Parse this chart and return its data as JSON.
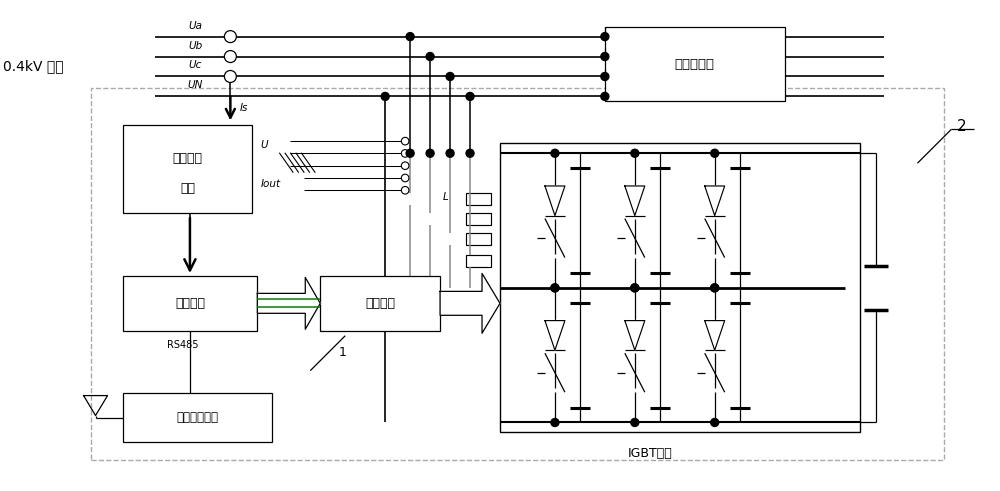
{
  "bg_color": "#ffffff",
  "lc": "#000000",
  "gray": "#888888",
  "green": "#008000",
  "voltage_label": "0.4kV 电源",
  "ua_label": "Ua",
  "ub_label": "Ub",
  "uc_label": "Uc",
  "un_label": "UN",
  "is_label": "Is",
  "u_label": "U",
  "iout_label": "Iout",
  "data_acq_line1": "数据采集",
  "data_acq_line2": "单元",
  "main_ctrl_label": "主控制器",
  "drive_cmd_label": "驱动指令",
  "central_ctrl_label": "集中控制系统",
  "unbalanced_load_label": "不平衡负荷",
  "igbt_label": "IGBT单元",
  "rs485_label": "RS485",
  "inductor_label": "L",
  "label_1": "1",
  "label_2": "2"
}
